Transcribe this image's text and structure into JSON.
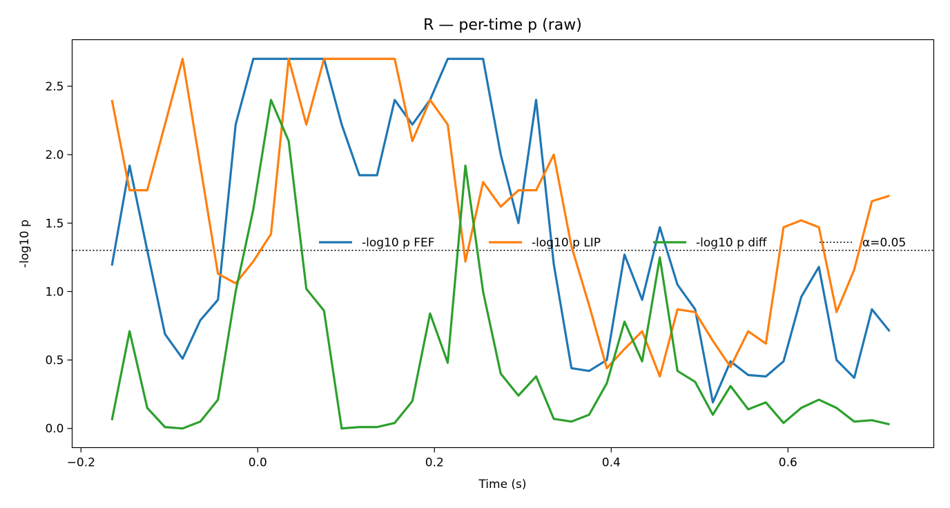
{
  "chart_data": {
    "type": "line",
    "title": "R — per-time p (raw)",
    "xlabel": "Time (s)",
    "ylabel": "-log10 p",
    "xlim": [
      -0.21,
      0.765
    ],
    "ylim": [
      -0.14,
      2.84
    ],
    "xticks": [
      -0.2,
      0.0,
      0.2,
      0.4,
      0.6
    ],
    "xtick_labels": [
      "−0.2",
      "0.0",
      "0.2",
      "0.4",
      "0.6"
    ],
    "yticks": [
      0.0,
      0.5,
      1.0,
      1.5,
      2.0,
      2.5
    ],
    "ytick_labels": [
      "0.0",
      "0.5",
      "1.0",
      "1.5",
      "2.0",
      "2.5"
    ],
    "grid": false,
    "legend_placement": "center-right, single row",
    "x": [
      -0.165,
      -0.145,
      -0.125,
      -0.105,
      -0.085,
      -0.065,
      -0.045,
      -0.025,
      -0.005,
      0.015,
      0.035,
      0.055,
      0.075,
      0.095,
      0.115,
      0.135,
      0.155,
      0.175,
      0.195,
      0.215,
      0.235,
      0.255,
      0.275,
      0.295,
      0.315,
      0.335,
      0.355,
      0.375,
      0.395,
      0.415,
      0.435,
      0.455,
      0.475,
      0.495,
      0.515,
      0.535,
      0.555,
      0.575,
      0.595,
      0.615,
      0.635,
      0.655,
      0.675,
      0.695,
      0.715
    ],
    "series": [
      {
        "name": "-log10 p FEF",
        "color": "#1f77b4",
        "values": [
          1.19,
          1.92,
          1.3,
          0.69,
          0.51,
          0.79,
          0.94,
          2.22,
          2.7,
          2.7,
          2.7,
          2.7,
          2.7,
          2.22,
          1.85,
          1.85,
          2.4,
          2.22,
          2.4,
          2.7,
          2.7,
          2.7,
          2.0,
          1.5,
          2.4,
          1.2,
          0.44,
          0.42,
          0.5,
          1.27,
          0.94,
          1.47,
          1.05,
          0.87,
          0.19,
          0.49,
          0.39,
          0.38,
          0.49,
          0.96,
          1.18,
          0.5,
          0.37,
          0.87,
          0.71
        ]
      },
      {
        "name": "-log10 p LIP",
        "color": "#ff7f0e",
        "values": [
          2.4,
          1.74,
          1.74,
          2.22,
          2.7,
          1.92,
          1.13,
          1.06,
          1.22,
          1.42,
          2.7,
          2.22,
          2.7,
          2.7,
          2.7,
          2.7,
          2.7,
          2.1,
          2.4,
          2.22,
          1.22,
          1.8,
          1.62,
          1.74,
          1.74,
          2.0,
          1.33,
          0.9,
          0.44,
          0.58,
          0.71,
          0.38,
          0.87,
          0.85,
          0.64,
          0.45,
          0.71,
          0.62,
          1.47,
          1.52,
          1.47,
          0.85,
          1.16,
          1.66,
          1.7
        ]
      },
      {
        "name": "-log10 p diff",
        "color": "#2ca02c",
        "values": [
          0.06,
          0.71,
          0.15,
          0.01,
          0.0,
          0.05,
          0.21,
          1.0,
          1.6,
          2.4,
          2.1,
          1.02,
          0.86,
          0.0,
          0.01,
          0.01,
          0.04,
          0.2,
          0.84,
          0.48,
          1.92,
          1.0,
          0.4,
          0.24,
          0.38,
          0.07,
          0.05,
          0.1,
          0.33,
          0.78,
          0.49,
          1.25,
          0.42,
          0.34,
          0.1,
          0.31,
          0.14,
          0.19,
          0.04,
          0.15,
          0.21,
          0.15,
          0.05,
          0.06,
          0.03
        ]
      }
    ],
    "threshold": {
      "name": "α=0.05",
      "value": 1.30103,
      "color": "#000000",
      "style": "dotted"
    }
  }
}
